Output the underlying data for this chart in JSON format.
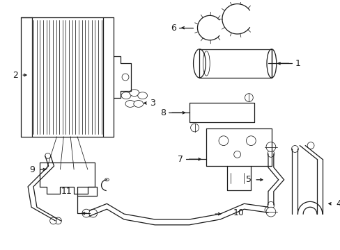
{
  "bg_color": "#ffffff",
  "line_color": "#1a1a1a",
  "figsize": [
    4.89,
    3.6
  ],
  "dpi": 100,
  "lw": 0.9,
  "tlw": 0.55
}
